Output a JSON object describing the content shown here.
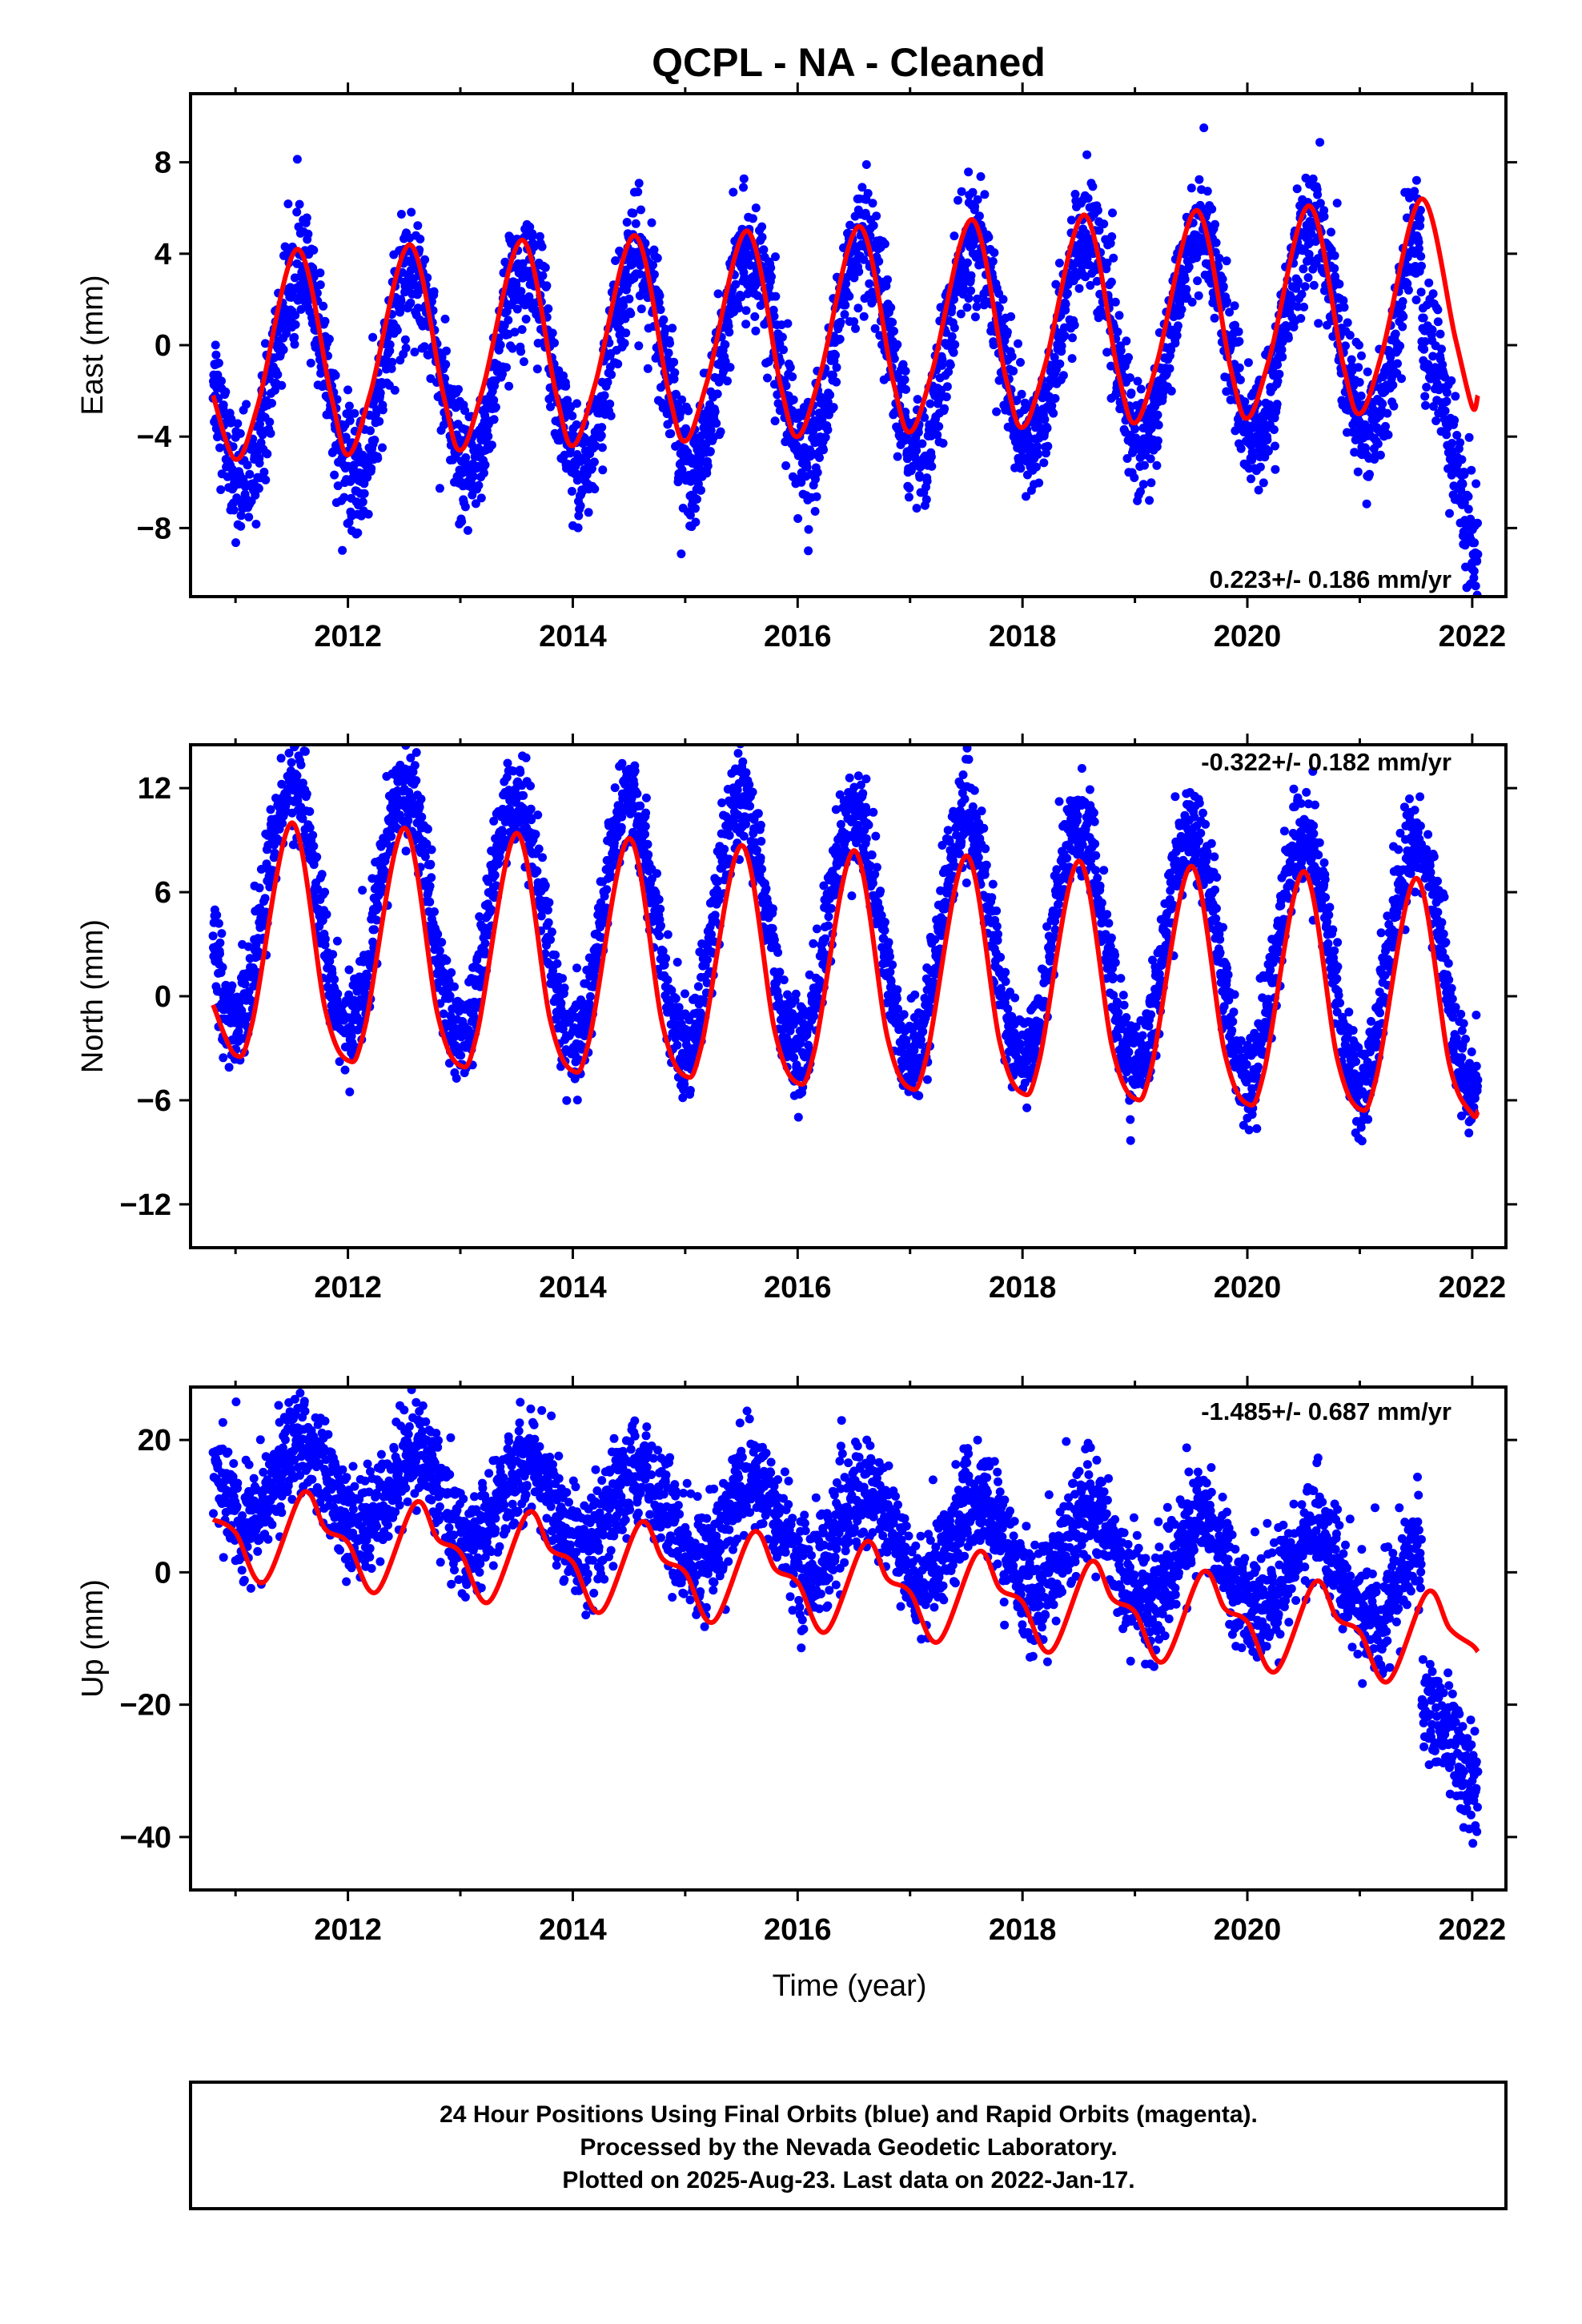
{
  "title": "QCPL  - NA - Cleaned",
  "rates": {
    "east": "0.223+/- 0.186 mm/yr",
    "north": "-0.322+/- 0.182 mm/yr",
    "up": "-1.485+/- 0.687 mm/yr"
  },
  "x_axis_label": "Time (year)",
  "footer": {
    "line1": "24 Hour Positions Using Final Orbits (blue) and Rapid Orbits (magenta).",
    "line2": "Processed by the Nevada Geodetic Laboratory.",
    "line3": "Plotted on 2025-Aug-23. Last data on 2022-Jan-17."
  },
  "colors": {
    "points": "#0000ff",
    "model": "#ff0000",
    "frame": "#000000"
  },
  "chart_data": [
    {
      "type": "scatter",
      "ylabel": "East (mm)",
      "xlim": [
        2010.6,
        2022.3
      ],
      "ylim": [
        -11,
        11
      ],
      "x_ticks": [
        2012,
        2014,
        2016,
        2018,
        2020,
        2022
      ],
      "y_ticks": [
        8,
        4,
        0,
        -4,
        -8
      ],
      "y_tick_labels": [
        "8",
        "4",
        "0",
        "−4",
        "−8"
      ],
      "series": [
        {
          "kind": "points",
          "x_start": 2010.8,
          "x_end": 2022.05,
          "seasonal_amplitude": 4.6,
          "peak_phase": 0.57,
          "trend_offset": -0.3,
          "trend_rate": 0.223,
          "scatter": 1.3,
          "late_segment": {
            "x_from": 2021.55,
            "offset_mm": -5.2
          }
        },
        {
          "kind": "model",
          "x": [
            2010.8,
            2011.0,
            2011.2,
            2011.55,
            2011.85,
            2012.0,
            2012.2,
            2012.55,
            2012.85,
            2013.0,
            2013.2,
            2013.55,
            2013.85,
            2014.0,
            2014.2,
            2014.55,
            2014.85,
            2015.0,
            2015.2,
            2015.55,
            2015.85,
            2016.0,
            2016.2,
            2016.55,
            2016.85,
            2017.0,
            2017.2,
            2017.55,
            2017.85,
            2018.0,
            2018.2,
            2018.55,
            2018.85,
            2019.0,
            2019.2,
            2019.55,
            2019.85,
            2020.0,
            2020.2,
            2020.55,
            2020.85,
            2021.0,
            2021.2,
            2021.55,
            2021.85,
            2022.0,
            2022.05
          ],
          "y": [
            -2.2,
            -5.0,
            -2.6,
            4.2,
            -2.2,
            -4.8,
            -2.1,
            4.4,
            -2.2,
            -4.6,
            -1.9,
            4.6,
            -2.1,
            -4.4,
            -1.7,
            4.8,
            -2.0,
            -4.2,
            -1.5,
            5.0,
            -1.8,
            -4.0,
            -1.3,
            5.2,
            -1.6,
            -3.8,
            -1.1,
            5.5,
            -1.4,
            -3.6,
            -0.9,
            5.7,
            -1.2,
            -3.4,
            -0.7,
            5.9,
            -1.0,
            -3.2,
            -0.5,
            6.1,
            -0.8,
            -3.0,
            -0.3,
            6.4,
            0.3,
            -2.7,
            -2.2
          ]
        }
      ]
    },
    {
      "type": "scatter",
      "ylabel": "North (mm)",
      "xlim": [
        2010.6,
        2022.3
      ],
      "ylim": [
        -14.5,
        14.5
      ],
      "x_ticks": [
        2012,
        2014,
        2016,
        2018,
        2020,
        2022
      ],
      "y_ticks": [
        12,
        6,
        0,
        -6,
        -12
      ],
      "y_tick_labels": [
        "12",
        "6",
        "0",
        "−6",
        "−12"
      ],
      "series": [
        {
          "kind": "points",
          "x_start": 2010.8,
          "x_end": 2022.05,
          "seasonal_amplitude": 7.0,
          "peak_phase": 0.5,
          "trend_offset": 3.6,
          "trend_rate": -0.322,
          "scatter": 1.4
        },
        {
          "kind": "model",
          "x": [
            2010.8,
            2011.0,
            2011.15,
            2011.5,
            2011.8,
            2012.0,
            2012.15,
            2012.5,
            2012.8,
            2013.0,
            2013.15,
            2013.5,
            2013.8,
            2014.0,
            2014.15,
            2014.5,
            2014.8,
            2015.0,
            2015.15,
            2015.5,
            2015.8,
            2016.0,
            2016.15,
            2016.5,
            2016.8,
            2017.0,
            2017.15,
            2017.5,
            2017.8,
            2018.0,
            2018.15,
            2018.5,
            2018.8,
            2019.0,
            2019.15,
            2019.5,
            2019.8,
            2020.0,
            2020.15,
            2020.5,
            2020.8,
            2021.0,
            2021.15,
            2021.5,
            2021.8,
            2022.0,
            2022.05
          ],
          "y": [
            -0.5,
            -3.4,
            -1.5,
            10.0,
            -0.8,
            -3.7,
            -1.8,
            9.7,
            -1.1,
            -4.0,
            -2.1,
            9.4,
            -1.4,
            -4.3,
            -2.4,
            9.1,
            -1.7,
            -4.6,
            -2.7,
            8.7,
            -2.1,
            -5.0,
            -3.1,
            8.4,
            -2.4,
            -5.3,
            -3.4,
            8.1,
            -2.7,
            -5.6,
            -3.7,
            7.8,
            -3.0,
            -5.9,
            -4.0,
            7.5,
            -3.3,
            -6.2,
            -4.3,
            7.2,
            -3.6,
            -6.5,
            -4.6,
            6.8,
            -4.0,
            -6.8,
            -6.6
          ]
        }
      ]
    },
    {
      "type": "scatter",
      "ylabel": "Up (mm)",
      "xlim": [
        2010.6,
        2022.3
      ],
      "ylim": [
        -48,
        28
      ],
      "x_ticks": [
        2012,
        2014,
        2016,
        2018,
        2020,
        2022
      ],
      "y_ticks": [
        20,
        0,
        -20,
        -40
      ],
      "y_tick_labels": [
        "20",
        "0",
        "−20",
        "−40"
      ],
      "series": [
        {
          "kind": "points",
          "x_start": 2010.8,
          "x_end": 2022.05,
          "seasonal_amplitude": 6.5,
          "peak_phase": 0.6,
          "trend_offset": 6.0,
          "trend_rate": -1.485,
          "scatter": 4.0,
          "late_segment": {
            "x_from": 2021.55,
            "offset_mm": -25.0
          }
        },
        {
          "kind": "model",
          "x": [
            2010.8,
            2011.0,
            2011.25,
            2011.6,
            2011.8,
            2012.0,
            2012.25,
            2012.6,
            2012.8,
            2013.0,
            2013.25,
            2013.6,
            2013.8,
            2014.0,
            2014.25,
            2014.6,
            2014.8,
            2015.0,
            2015.25,
            2015.6,
            2015.8,
            2016.0,
            2016.25,
            2016.6,
            2016.8,
            2017.0,
            2017.25,
            2017.6,
            2017.8,
            2018.0,
            2018.25,
            2018.6,
            2018.8,
            2019.0,
            2019.25,
            2019.6,
            2019.8,
            2020.0,
            2020.25,
            2020.6,
            2020.8,
            2021.0,
            2021.25,
            2021.6,
            2021.8,
            2022.0,
            2022.05
          ],
          "y": [
            8.0,
            6.0,
            -1.5,
            12.0,
            6.5,
            4.5,
            -3.0,
            10.5,
            5.0,
            3.0,
            -4.5,
            9.0,
            3.5,
            1.5,
            -6.0,
            7.5,
            2.0,
            0.0,
            -7.5,
            6.0,
            0.5,
            -1.5,
            -9.0,
            4.5,
            -1.0,
            -3.0,
            -10.5,
            3.0,
            -2.5,
            -4.5,
            -12.0,
            1.5,
            -4.0,
            -6.0,
            -13.5,
            0.0,
            -5.5,
            -7.5,
            -15.0,
            -1.5,
            -7.0,
            -9.0,
            -16.5,
            -3.0,
            -8.5,
            -11.0,
            -12.0
          ]
        }
      ]
    }
  ]
}
